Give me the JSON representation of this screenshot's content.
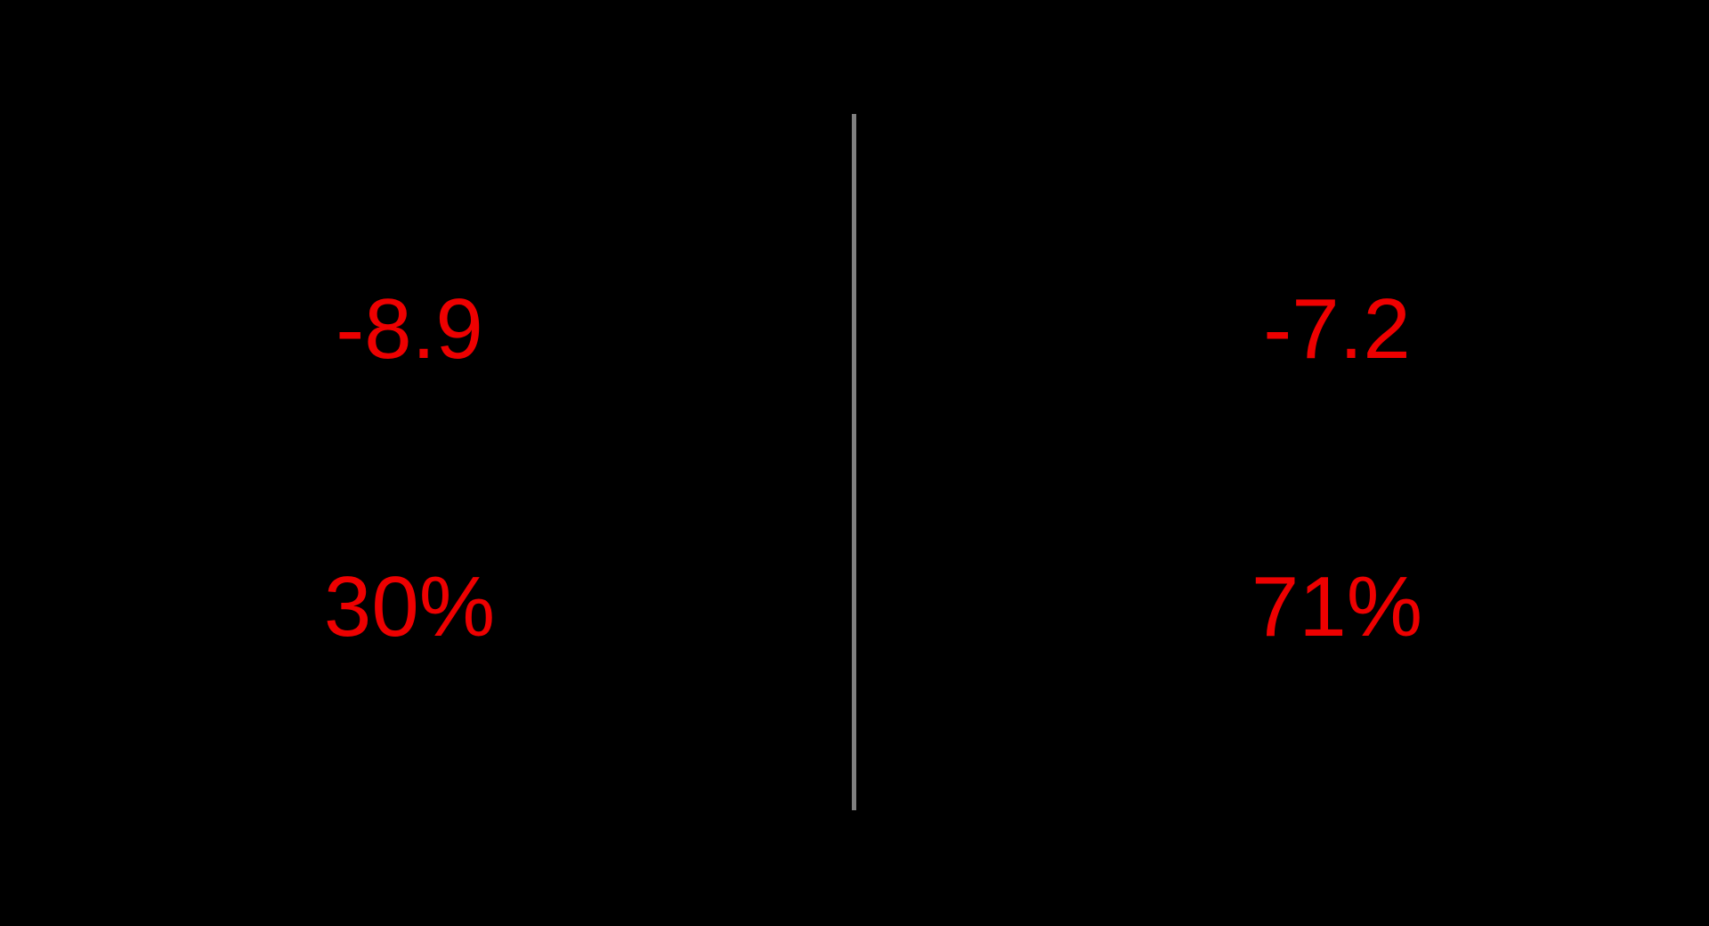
{
  "colors": {
    "background": "#000000",
    "value_text": "#ee0000",
    "divider": "#808080"
  },
  "left_panel": {
    "primary_value": "-8.9",
    "secondary_value": "30%"
  },
  "right_panel": {
    "primary_value": "-7.2",
    "secondary_value": "71%"
  }
}
